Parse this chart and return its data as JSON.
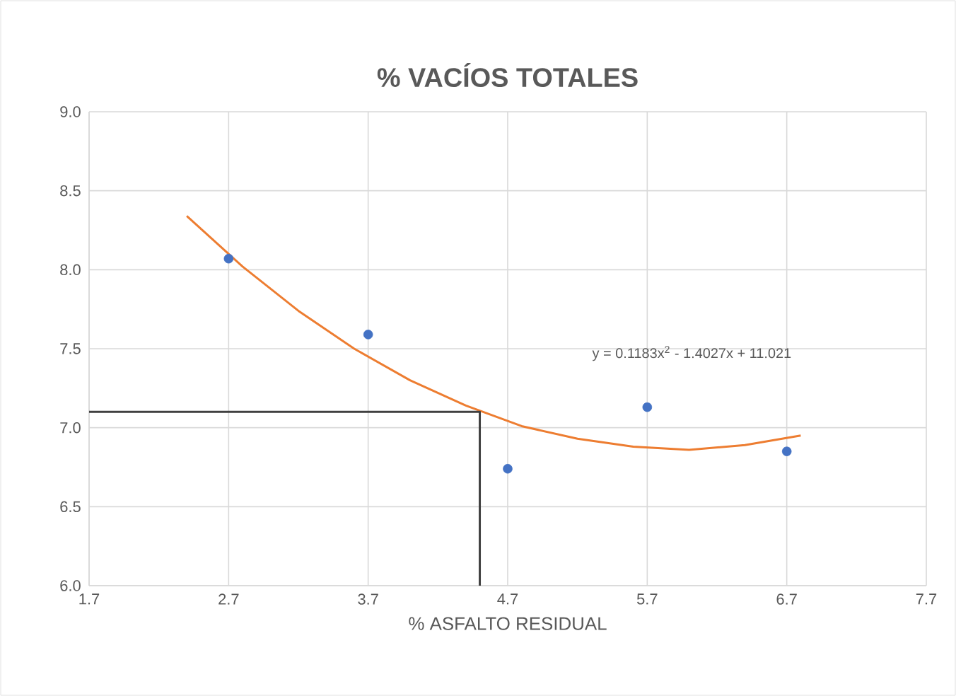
{
  "chart_data": {
    "type": "scatter",
    "title": "% VACÍOS  TOTALES",
    "xlabel": "% ASFALTO RESIDUAL",
    "xlim": [
      1.7,
      7.7
    ],
    "ylim": [
      6.0,
      9.0
    ],
    "xticks": [
      {
        "value": 1.7,
        "label": "1.7"
      },
      {
        "value": 2.7,
        "label": "2.7"
      },
      {
        "value": 3.7,
        "label": "3.7"
      },
      {
        "value": 4.7,
        "label": "4.7"
      },
      {
        "value": 5.7,
        "label": "5.7"
      },
      {
        "value": 6.7,
        "label": "6.7"
      },
      {
        "value": 7.7,
        "label": "7.7"
      }
    ],
    "yticks": [
      {
        "value": 6.0,
        "label": "6.0"
      },
      {
        "value": 6.5,
        "label": "6.5"
      },
      {
        "value": 7.0,
        "label": "7.0"
      },
      {
        "value": 7.5,
        "label": "7.5"
      },
      {
        "value": 8.0,
        "label": "8.0"
      },
      {
        "value": 8.5,
        "label": "8.5"
      },
      {
        "value": 9.0,
        "label": "9.0"
      }
    ],
    "grid": true,
    "annotations": [
      "y = 0.1183x$^{2}$ - 1.4027x + 11.021"
    ],
    "series": [
      {
        "marker": "circle",
        "color": "#4472c4",
        "x": [
          2.7,
          3.7,
          4.7,
          5.7,
          6.7
        ],
        "values": [
          8.07,
          7.59,
          6.74,
          7.13,
          6.85
        ]
      },
      {
        "type": "line",
        "color": "#ed7d31",
        "x": [
          2.4,
          2.8,
          3.2,
          3.6,
          4.0,
          4.4,
          4.8,
          5.2,
          5.6,
          6.0,
          6.4,
          6.8
        ],
        "values": [
          8.34,
          8.02,
          7.74,
          7.5,
          7.3,
          7.14,
          7.01,
          6.93,
          6.88,
          6.86,
          6.89,
          6.95
        ]
      },
      {
        "type": "line",
        "color": "#404040",
        "x": [
          1.7,
          4.5,
          4.5
        ],
        "values": [
          7.1,
          7.1,
          6.0
        ]
      }
    ]
  }
}
